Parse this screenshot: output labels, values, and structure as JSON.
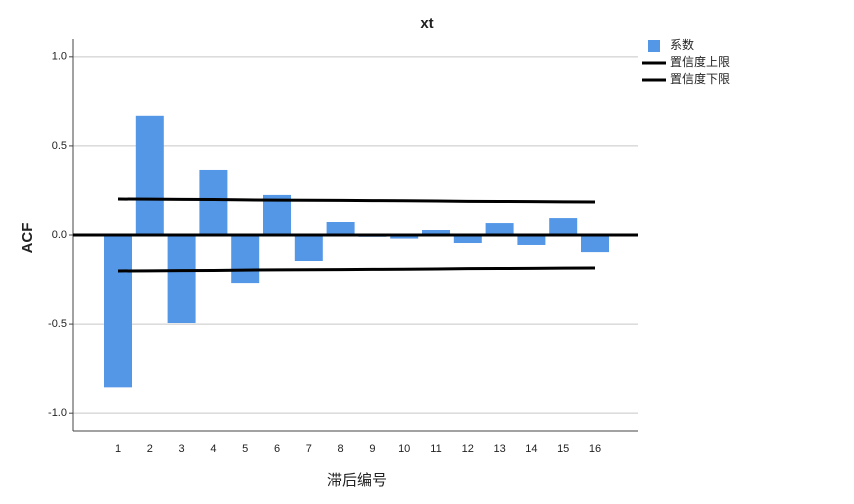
{
  "chart_data": {
    "type": "bar",
    "title": "xt",
    "x_label": "滞后编号",
    "y_label": "ACF",
    "categories": [
      "1",
      "2",
      "3",
      "4",
      "5",
      "6",
      "7",
      "8",
      "9",
      "10",
      "11",
      "12",
      "13",
      "14",
      "15",
      "16"
    ],
    "series": [
      {
        "name": "系数",
        "type": "bar",
        "color": "#5597e7",
        "values": [
          -0.855,
          0.669,
          -0.494,
          0.365,
          -0.27,
          0.225,
          -0.146,
          0.073,
          -0.01,
          -0.02,
          0.028,
          -0.045,
          0.067,
          -0.056,
          0.095,
          -0.096
        ]
      },
      {
        "name": "置信度上限",
        "type": "line",
        "color": "#000000",
        "values": [
          0.202,
          0.201,
          0.2,
          0.199,
          0.197,
          0.196,
          0.195,
          0.194,
          0.193,
          0.192,
          0.191,
          0.189,
          0.188,
          0.187,
          0.186,
          0.185
        ]
      },
      {
        "name": "置信度下限",
        "type": "line",
        "color": "#000000",
        "values": [
          -0.202,
          -0.201,
          -0.2,
          -0.199,
          -0.197,
          -0.196,
          -0.195,
          -0.194,
          -0.193,
          -0.192,
          -0.191,
          -0.189,
          -0.188,
          -0.187,
          -0.186,
          -0.185
        ]
      }
    ],
    "ylim": [
      -1.1,
      1.1
    ],
    "yticks": [
      {
        "value": 1,
        "label": "1.0"
      },
      0.5,
      {
        "value": 0,
        "label": "0.0"
      },
      -0.5,
      {
        "value": -1,
        "label": "-1.0"
      }
    ],
    "grid": true
  }
}
